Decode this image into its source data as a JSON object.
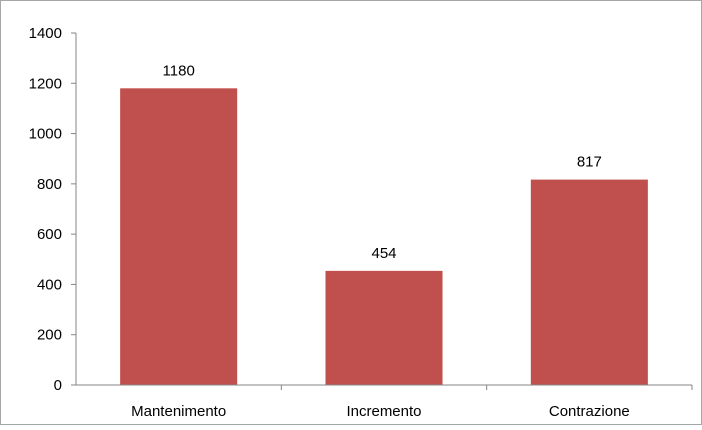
{
  "chart_data": {
    "type": "bar",
    "title": "",
    "xlabel": "",
    "ylabel": "",
    "categories": [
      "Mantenimento",
      "Incremento",
      "Contrazione"
    ],
    "values": [
      1180,
      454,
      817
    ],
    "data_labels": [
      "1180",
      "454",
      "817"
    ],
    "ylim": [
      0,
      1400
    ],
    "yticks": [
      0,
      200,
      400,
      600,
      800,
      1000,
      1200,
      1400
    ],
    "ytick_labels": [
      "0",
      "200",
      "400",
      "600",
      "800",
      "1000",
      "1200",
      "1400"
    ],
    "grid": false,
    "legend": "none",
    "colors": {
      "bar": "#c0504d",
      "axis": "#868686",
      "border": "#a6a6a6"
    }
  }
}
